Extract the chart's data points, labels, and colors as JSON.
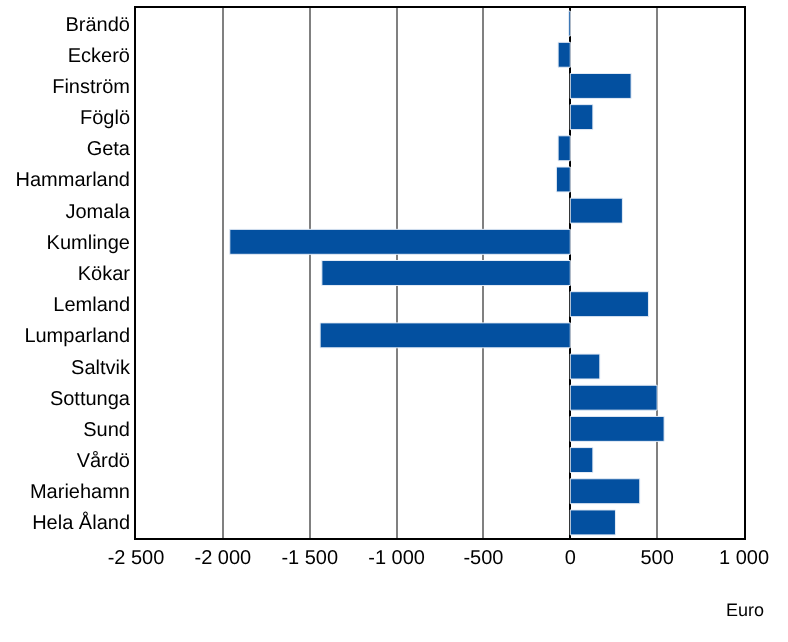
{
  "chart_data": {
    "type": "bar",
    "orientation": "horizontal",
    "xlabel": "Euro",
    "categories": [
      "Brändö",
      "Eckerö",
      "Finström",
      "Föglö",
      "Geta",
      "Hammarland",
      "Jomala",
      "Kumlinge",
      "Kökar",
      "Lemland",
      "Lumparland",
      "Saltvik",
      "Sottunga",
      "Sund",
      "Vårdö",
      "Mariehamn",
      "Hela Åland"
    ],
    "values": [
      -10,
      -70,
      350,
      130,
      -70,
      -80,
      300,
      -1960,
      -1430,
      450,
      -1440,
      170,
      500,
      540,
      130,
      400,
      260
    ],
    "color": "#0350a0",
    "xlim": [
      -2500,
      1000
    ],
    "xticks": [
      {
        "value": -2500,
        "label": "-2 500"
      },
      {
        "value": -2000,
        "label": "-2 000"
      },
      {
        "value": -1500,
        "label": "-1 500"
      },
      {
        "value": -1000,
        "label": "-1 000"
      },
      -500,
      0,
      500,
      {
        "value": 1000,
        "label": "1 000"
      }
    ],
    "grid": "x"
  }
}
